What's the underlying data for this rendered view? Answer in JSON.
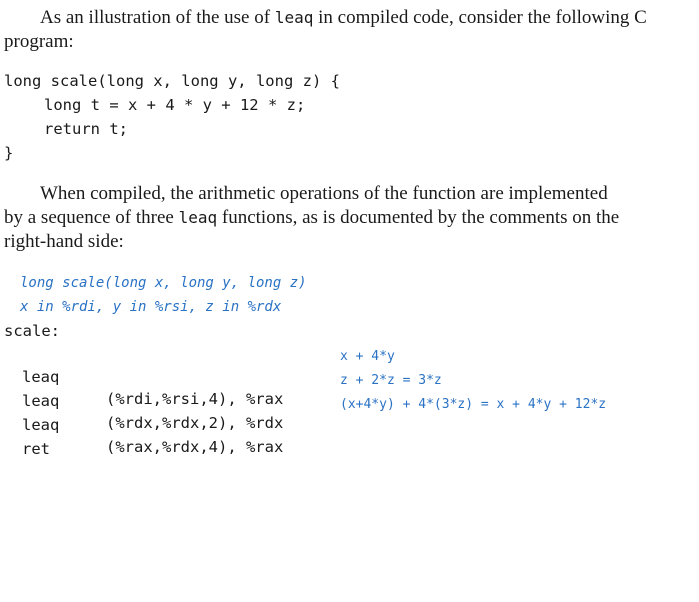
{
  "intro": {
    "before": "As an illustration of the use of ",
    "code": "leaq",
    "after": " in compiled code, consider the following C program:"
  },
  "c_program": [
    "long scale(long x, long y, long z) {",
    "long t = x + 4 * y + 12 * z;",
    "return t;",
    "}"
  ],
  "para2": {
    "line1": "When compiled, the arithmetic operations of the function are implemented",
    "line2_before": "by a sequence of three ",
    "line2_code": "leaq",
    "line2_after": " functions, as is documented by the comments on the",
    "line3": "right-hand side:"
  },
  "asm_header": [
    "long scale(long x, long y, long z)",
    "x in %rdi, y in %rsi, z in %rdx"
  ],
  "asm_label": "scale:",
  "asm": [
    {
      "op": "leaq",
      "args": "(%rdi,%rsi,4), %rax",
      "comment": "x + 4*y"
    },
    {
      "op": "leaq",
      "args": "(%rdx,%rdx,2), %rdx",
      "comment": "z + 2*z = 3*z"
    },
    {
      "op": "leaq",
      "args": "(%rax,%rdx,4), %rax",
      "comment": "(x+4*y) + 4*(3*z) = x + 4*y + 12*z"
    },
    {
      "op": "ret",
      "args": "",
      "comment": ""
    }
  ],
  "colors": {
    "comment": "#2a72c4",
    "text": "#1a1a1a"
  }
}
